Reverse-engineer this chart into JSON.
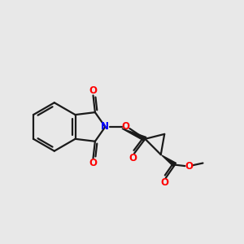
{
  "background_color": "#e8e8e8",
  "bond_color": "#1a1a1a",
  "n_color": "#0000ff",
  "o_color": "#ff0000",
  "line_width": 1.6,
  "figsize": [
    3.0,
    3.0
  ],
  "dpi": 100,
  "xlim": [
    0,
    10
  ],
  "ylim": [
    2.5,
    8.5
  ]
}
